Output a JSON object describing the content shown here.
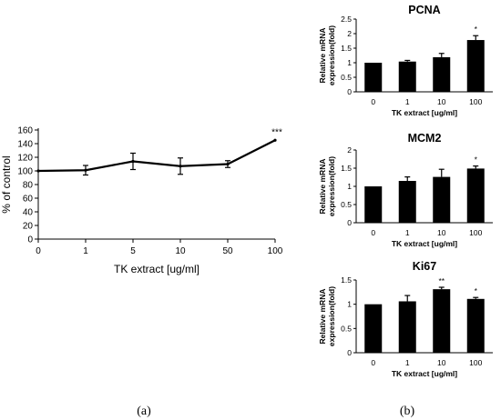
{
  "panel_labels": [
    "(a)",
    "(b)"
  ],
  "chart_data": [
    {
      "type": "line",
      "title": "",
      "xlabel": "TK extract [ug/ml]",
      "ylabel": "% of control",
      "categories": [
        "0",
        "1",
        "5",
        "10",
        "50",
        "100"
      ],
      "values": [
        100,
        101,
        114,
        107,
        110,
        145
      ],
      "errors": [
        0,
        7,
        12,
        12,
        5,
        0
      ],
      "annotations": [
        "",
        "",
        "",
        "",
        "",
        "***"
      ],
      "ylim": [
        0,
        160
      ],
      "yticks": [
        "0",
        "20",
        "40",
        "60",
        "80",
        "100",
        "120",
        "140",
        "160"
      ],
      "grid": false,
      "color": "#000000"
    },
    {
      "type": "bar",
      "title": "PCNA",
      "xlabel": "TK extract [ug/ml]",
      "ylabel_line1": "Relative mRNA",
      "ylabel_line2": "expression(fold)",
      "categories": [
        "0",
        "1",
        "10",
        "100"
      ],
      "values": [
        1.0,
        1.04,
        1.19,
        1.78
      ],
      "errors": [
        0,
        0.04,
        0.13,
        0.15
      ],
      "annotations": [
        "",
        "",
        "",
        "*"
      ],
      "ylim": [
        0,
        2.5
      ],
      "yticks": [
        "0",
        "0.5",
        "1",
        "1.5",
        "2",
        "2.5"
      ],
      "grid": false,
      "color": "#000000"
    },
    {
      "type": "bar",
      "title": "MCM2",
      "xlabel": "TK extract [ug/ml]",
      "ylabel_line1": "Relative mRNA",
      "ylabel_line2": "expression(fold)",
      "categories": [
        "0",
        "1",
        "10",
        "100"
      ],
      "values": [
        1.0,
        1.15,
        1.26,
        1.49
      ],
      "errors": [
        0,
        0.11,
        0.21,
        0.07
      ],
      "annotations": [
        "",
        "",
        "",
        "*"
      ],
      "ylim": [
        0,
        2
      ],
      "yticks": [
        "0",
        "0.5",
        "1",
        "1.5",
        "2"
      ],
      "grid": false,
      "color": "#000000"
    },
    {
      "type": "bar",
      "title": "Ki67",
      "xlabel": "TK extract [ug/ml]",
      "ylabel_line1": "Relative mRNA",
      "ylabel_line2": "expression(fold)",
      "categories": [
        "0",
        "1",
        "10",
        "100"
      ],
      "values": [
        1.0,
        1.06,
        1.31,
        1.11
      ],
      "errors": [
        0,
        0.12,
        0.04,
        0.03
      ],
      "annotations": [
        "",
        "",
        "**",
        "*"
      ],
      "ylim": [
        0,
        1.5
      ],
      "yticks": [
        "0",
        "0.5",
        "1",
        "1.5"
      ],
      "grid": false,
      "color": "#000000"
    }
  ]
}
